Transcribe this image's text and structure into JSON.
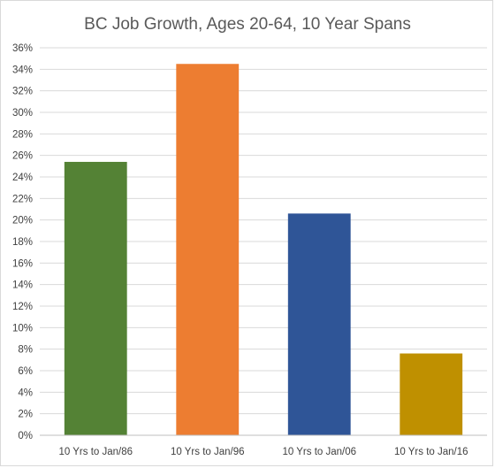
{
  "chart_data": {
    "type": "bar",
    "title": "BC Job Growth, Ages 20-64, 10 Year Spans",
    "xlabel": "",
    "ylabel": "",
    "categories": [
      "10 Yrs to Jan/86",
      "10 Yrs to Jan/96",
      "10 Yrs to Jan/06",
      "10 Yrs to Jan/16"
    ],
    "values": [
      25.4,
      34.5,
      20.6,
      7.6
    ],
    "colors": [
      "#548235",
      "#ed7d31",
      "#2f5597",
      "#bf9000"
    ],
    "ylim": [
      0,
      36
    ],
    "ytick_step": 2,
    "ytick_format": "percent",
    "grid": true,
    "legend": "none"
  }
}
